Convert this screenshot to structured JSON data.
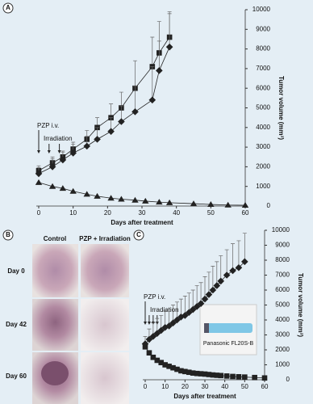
{
  "chart_data": [
    {
      "type": "line",
      "label": "A",
      "xlabel": "Days after treatment",
      "ylabel": "Tumor volume (mm³)",
      "annotations": [
        "PZP i.v.",
        "Irradiation"
      ],
      "xlim": [
        0,
        60
      ],
      "xticks": [
        0,
        10,
        20,
        30,
        40,
        50,
        60
      ],
      "ylim": [
        0,
        10000
      ],
      "yticks": [
        0,
        1000,
        2000,
        3000,
        4000,
        5000,
        6000,
        7000,
        8000,
        9000,
        10000
      ],
      "series": [
        {
          "marker": "square",
          "color": "#222222",
          "x": [
            0,
            4,
            7,
            10,
            14,
            17,
            21,
            24,
            28,
            33,
            35,
            38
          ],
          "values": [
            1800,
            2200,
            2500,
            2900,
            3400,
            4000,
            4500,
            5000,
            6000,
            7100,
            7800,
            8600
          ],
          "errors": [
            250,
            300,
            300,
            350,
            450,
            500,
            700,
            800,
            1400,
            1500,
            1600,
            1300
          ]
        },
        {
          "marker": "diamond",
          "color": "#222222",
          "x": [
            0,
            4,
            7,
            10,
            14,
            17,
            21,
            24,
            28,
            33,
            35,
            38
          ],
          "values": [
            1650,
            2000,
            2350,
            2700,
            3050,
            3400,
            3800,
            4300,
            4800,
            5400,
            6900,
            8100
          ],
          "errors": [
            300,
            400,
            400,
            450,
            500,
            600,
            700,
            800,
            1300,
            1700,
            1500,
            1700
          ]
        },
        {
          "marker": "triangle",
          "color": "#222222",
          "x": [
            0,
            4,
            7,
            10,
            14,
            17,
            21,
            24,
            28,
            31,
            35,
            38,
            45,
            50,
            55,
            60
          ],
          "values": [
            1200,
            1000,
            900,
            750,
            600,
            500,
            400,
            350,
            300,
            250,
            200,
            170,
            120,
            80,
            50,
            40
          ]
        }
      ]
    },
    {
      "type": "line",
      "label": "C",
      "xlabel": "Days after treatment",
      "ylabel": "Tumor volume (mm³)",
      "annotations": [
        "PZP i.v.",
        "Irradiation"
      ],
      "inset": "Panasonic FL20S-B",
      "xlim": [
        0,
        60
      ],
      "xticks": [
        0,
        10,
        20,
        30,
        40,
        50,
        60
      ],
      "ylim": [
        0,
        10000
      ],
      "yticks": [
        0,
        1000,
        2000,
        3000,
        4000,
        5000,
        6000,
        7000,
        8000,
        9000,
        10000
      ],
      "series": [
        {
          "marker": "diamond",
          "color": "#222222",
          "x": [
            0,
            2,
            4,
            6,
            8,
            10,
            12,
            14,
            16,
            18,
            20,
            22,
            24,
            26,
            28,
            30,
            32,
            34,
            36,
            38,
            41,
            44,
            47,
            50
          ],
          "values": [
            2400,
            2700,
            2900,
            3100,
            3300,
            3500,
            3600,
            3800,
            4000,
            4200,
            4300,
            4500,
            4700,
            4900,
            5100,
            5400,
            5700,
            6000,
            6300,
            6600,
            7000,
            7300,
            7500,
            7900
          ],
          "errors": [
            500,
            700,
            900,
            1000,
            1000,
            1100,
            1100,
            1200,
            1200,
            1200,
            1300,
            1300,
            1300,
            1400,
            1400,
            1500,
            1500,
            1600,
            1600,
            1700,
            1700,
            1800,
            1800,
            1900
          ]
        },
        {
          "marker": "square",
          "color": "#222222",
          "x": [
            0,
            2,
            4,
            6,
            8,
            10,
            12,
            14,
            16,
            18,
            20,
            22,
            24,
            26,
            28,
            30,
            32,
            34,
            36,
            38,
            41,
            44,
            47,
            50,
            55,
            60
          ],
          "values": [
            2200,
            1800,
            1500,
            1300,
            1150,
            1000,
            900,
            800,
            700,
            600,
            550,
            500,
            450,
            420,
            400,
            380,
            350,
            320,
            300,
            280,
            250,
            220,
            200,
            180,
            150,
            120
          ]
        }
      ]
    }
  ],
  "panel_b": {
    "label": "B",
    "columns": [
      "Control",
      "PZP + Irradiation"
    ],
    "rows": [
      "Day 0",
      "Day 42",
      "Day 60"
    ]
  }
}
